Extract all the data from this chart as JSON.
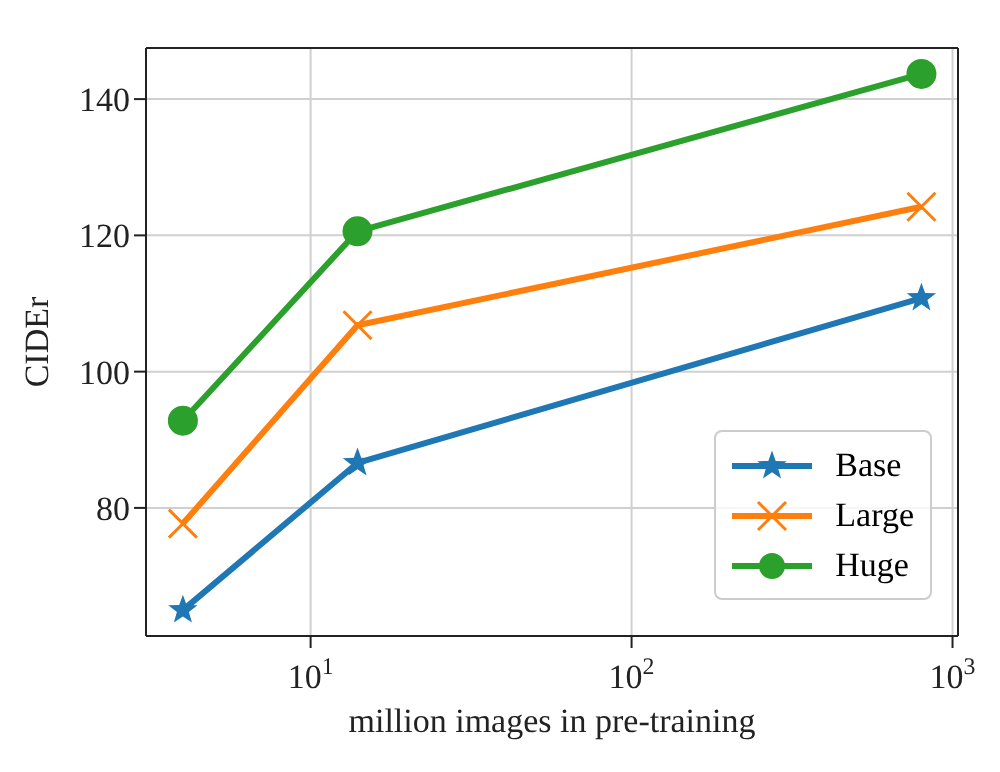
{
  "chart_data": {
    "type": "line",
    "xlabel": "million images in pre-training",
    "ylabel": "CIDEr",
    "log": "x",
    "x": [
      4,
      14,
      800
    ],
    "xlim": [
      3.07,
      1040
    ],
    "xticks": [
      {
        "value": 10,
        "label": "10$^{1}$"
      },
      {
        "value": 100,
        "label": "10$^{2}$"
      },
      {
        "value": 1000,
        "label": "10$^{3}$"
      }
    ],
    "ylim": [
      61.2,
      147.5
    ],
    "yticks": [
      80,
      100,
      120,
      140
    ],
    "grid": true,
    "legend": "bottom right",
    "line_style": "solid",
    "series": [
      {
        "name": "Base",
        "color": "#1f77b4",
        "marker": "star",
        "values": [
          65,
          86.6,
          110.8
        ]
      },
      {
        "name": "Large",
        "color": "#ff7f0e",
        "marker": "cross",
        "values": [
          77.7,
          106.8,
          124.2
        ]
      },
      {
        "name": "Huge",
        "color": "#2ca02c",
        "marker": "circle",
        "values": [
          92.8,
          120.6,
          143.7
        ]
      }
    ]
  }
}
